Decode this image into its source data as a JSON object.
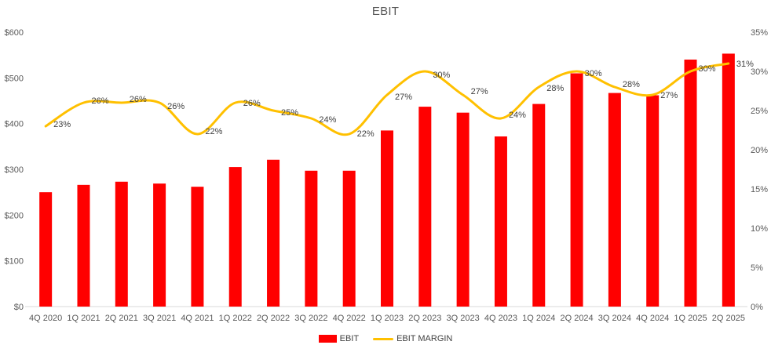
{
  "chart_data": {
    "type": "bar",
    "subtype": "combo-bar-line",
    "title": "EBIT",
    "categories": [
      "4Q 2020",
      "1Q 2021",
      "2Q 2021",
      "3Q 2021",
      "4Q 2021",
      "1Q 2022",
      "2Q 2022",
      "3Q 2022",
      "4Q 2022",
      "1Q 2023",
      "2Q 2023",
      "3Q 2023",
      "4Q 2023",
      "1Q 2024",
      "2Q 2024",
      "3Q 2024",
      "4Q 2024",
      "1Q 2025",
      "2Q 2025"
    ],
    "series": [
      {
        "name": "EBIT",
        "type": "bar",
        "axis": "left",
        "color": "#FF0000",
        "values": [
          250,
          266,
          273,
          269,
          262,
          305,
          321,
          297,
          297,
          385,
          437,
          424,
          372,
          443,
          510,
          467,
          462,
          540,
          553
        ]
      },
      {
        "name": "EBIT MARGIN",
        "type": "line",
        "axis": "right",
        "color": "#FFC000",
        "smooth": true,
        "values": [
          23,
          26,
          26,
          26,
          22,
          26,
          25,
          24,
          22,
          27,
          30,
          27,
          24,
          28,
          30,
          28,
          27,
          30,
          31
        ],
        "point_labels": [
          "23%",
          "26%",
          "26%",
          "26%",
          "22%",
          "26%",
          "25%",
          "24%",
          "22%",
          "27%",
          "30%",
          "27%",
          "24%",
          "28%",
          "30%",
          "28%",
          "27%",
          "30%",
          "31%"
        ]
      }
    ],
    "left_axis": {
      "min": 0,
      "max": 600,
      "step": 100,
      "tick_labels": [
        "$0",
        "$100",
        "$200",
        "$300",
        "$400",
        "$500",
        "$600"
      ]
    },
    "right_axis": {
      "min": 0,
      "max": 35,
      "step": 5,
      "tick_labels": [
        "0%",
        "5%",
        "10%",
        "15%",
        "20%",
        "25%",
        "30%",
        "35%"
      ]
    },
    "grid": "off",
    "legend_position": "bottom",
    "colors": {
      "bar": "#FF0000",
      "line": "#FFC000",
      "axis_text": "#595959",
      "data_label_text": "#404040",
      "axis_line": "#D9D9D9",
      "title_text": "#595959",
      "background": "#FFFFFF"
    }
  }
}
